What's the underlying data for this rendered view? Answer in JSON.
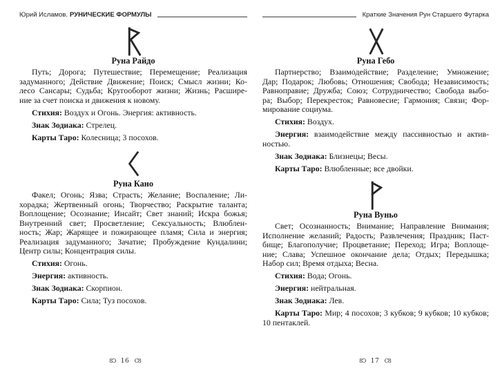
{
  "book": {
    "left_page": {
      "header": {
        "author": "Юрий Исламов.",
        "title_bold": "РУНИЧЕСКИЕ ФОРМУЛЫ"
      },
      "footer": {
        "ornament_left": "8Ͻ",
        "page_number": "16",
        "ornament_right": "Ϲ8"
      },
      "sections": [
        {
          "rune": "raido",
          "title": "Руна Райдо",
          "keywords_lines": [
            "Путь; Дорога; Путешествие; Перемещение; Реализация",
            "задуманного; Действие Движение; Поиск; Смысл жизни; Ко-",
            "лесо Сансары; Судьба; Кругооборот жизни; Жизнь; Расшире-",
            "ние за счет поиска и движения к новому."
          ],
          "attributes": [
            {
              "label": "Стихия:",
              "lines": [
                "Воздух и Огонь. Энергия: активность."
              ]
            },
            {
              "label": "Знак Зодиака:",
              "lines": [
                "Стрелец."
              ]
            },
            {
              "label": "Карты Таро:",
              "lines": [
                "Колесница; 3 посохов."
              ]
            }
          ]
        },
        {
          "rune": "kano",
          "title": "Руна Кано",
          "keywords_lines": [
            "Факел; Огонь; Язва; Страсть; Желание; Воспаление; Ли-",
            "хорадка; Жертвенный огонь; Творчество; Раскрытие таланта;",
            "Воплощение; Осознание; Инсайт; Свет знаний; Искра божья;",
            "Внутренний свет; Просветление; Сексуальность; Влюблен-",
            "ность; Жар; Жарящее и пожирающее пламя; Сила и энергия;",
            "Реализация задуманного; Зачатие; Пробуждение Кундалини;",
            "Центр силы; Концентрация силы."
          ],
          "attributes": [
            {
              "label": "Стихия:",
              "lines": [
                "Огонь."
              ]
            },
            {
              "label": "Энергия:",
              "lines": [
                "активность."
              ]
            },
            {
              "label": "Знак Зодиака:",
              "lines": [
                "Скорпион."
              ]
            },
            {
              "label": "Карты Таро:",
              "lines": [
                "Сила; Туз посохов."
              ]
            }
          ]
        }
      ]
    },
    "right_page": {
      "header": {
        "title": "Краткие Значения Рун Старшего Футарка"
      },
      "footer": {
        "ornament_left": "8Ͻ",
        "page_number": "17",
        "ornament_right": "Ϲ8"
      },
      "sections": [
        {
          "rune": "gebo",
          "title": "Руна Гебо",
          "keywords_lines": [
            "Партнерство; Взаимодействие; Разделение; Умножение;",
            "Дар; Подарок; Любовь; Отношения; Свобода; Независимость;",
            "Равноправие; Дружба; Союз; Сотрудничество; Свобода выбо-",
            "ра; Выбор; Перекресток; Равновесие; Гармония; Связи; Фор-",
            "мирование социума."
          ],
          "attributes": [
            {
              "label": "Стихия:",
              "lines": [
                "Воздух."
              ]
            },
            {
              "label": "Энергия:",
              "lines": [
                "взаимодействие между пассивностью и актив-",
                "ностью."
              ]
            },
            {
              "label": "Знак Зодиака:",
              "lines": [
                "Близнецы; Весы."
              ]
            },
            {
              "label": "Карты Таро:",
              "lines": [
                "Влюбленные; все двойки."
              ]
            }
          ]
        },
        {
          "rune": "wunjo",
          "title": "Руна Вуньо",
          "keywords_lines": [
            "Свет; Осознанность; Внимание; Направление Внимания;",
            "Исполнение желаний; Радость; Развлечения; Праздник; Паст-",
            "бище; Благополучие; Процветание; Переход; Игра; Воплоще-",
            "ние; Слава; Успешное окончание дела; Отдых; Передышка;",
            "Набор сил; Время отдыха; Весна."
          ],
          "attributes": [
            {
              "label": "Стихия:",
              "lines": [
                "Вода; Огонь."
              ]
            },
            {
              "label": "Энергия:",
              "lines": [
                "нейтральная."
              ]
            },
            {
              "label": "Знак Зодиака:",
              "lines": [
                "Лев."
              ]
            },
            {
              "label": "Карты Таро:",
              "lines": [
                "Мир; 4 посохов; 3 кубков; 9 кубков; 10 кубков;",
                "10 пентаклей."
              ]
            }
          ]
        }
      ]
    }
  }
}
